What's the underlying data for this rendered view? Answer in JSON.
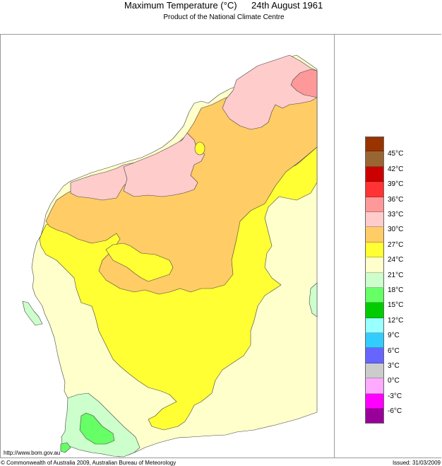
{
  "header": {
    "title": "Maximum Temperature (°C)",
    "date": "24th August 1961",
    "subtitle": "Product of the National Climate Centre"
  },
  "footer": {
    "url": "http://www.bom.gov.au",
    "copyright": "© Commonwealth of Australia 2009, Australian Bureau of Meteorology",
    "issued": "Issued: 31/03/2009"
  },
  "legend": {
    "units": "°C",
    "swatches": [
      {
        "color": "#993300",
        "range": ">45"
      },
      {
        "color": "#996633",
        "range": "42-45"
      },
      {
        "color": "#cc0000",
        "range": "39-42"
      },
      {
        "color": "#ff3333",
        "range": "36-39"
      },
      {
        "color": "#ff9999",
        "range": "33-36"
      },
      {
        "color": "#ffcccc",
        "range": "30-33"
      },
      {
        "color": "#ffcc66",
        "range": "27-30"
      },
      {
        "color": "#ffff33",
        "range": "24-27"
      },
      {
        "color": "#ffffcc",
        "range": "21-24"
      },
      {
        "color": "#ccffcc",
        "range": "18-21"
      },
      {
        "color": "#66ff66",
        "range": "15-18"
      },
      {
        "color": "#00cc00",
        "range": "12-15"
      },
      {
        "color": "#99ffff",
        "range": "9-12"
      },
      {
        "color": "#33ccff",
        "range": "6-9"
      },
      {
        "color": "#6666ff",
        "range": "3-6"
      },
      {
        "color": "#cccccc",
        "range": "0-3"
      },
      {
        "color": "#ffaaff",
        "range": "-3-0"
      },
      {
        "color": "#ff00ff",
        "range": "-6--3"
      },
      {
        "color": "#990099",
        "range": "<-6"
      }
    ],
    "labels": [
      "45°C",
      "42°C",
      "39°C",
      "36°C",
      "33°C",
      "30°C",
      "27°C",
      "24°C",
      "21°C",
      "18°C",
      "15°C",
      "12°C",
      "9°C",
      "6°C",
      "3°C",
      "0°C",
      "-3°C",
      "-6°C"
    ]
  },
  "map": {
    "region": "Western Australia",
    "zones": [
      {
        "name": "north-coast-pink",
        "range": "30-33",
        "color": "#ffcccc"
      },
      {
        "name": "kimberley-hot-spot",
        "range": "33-36",
        "color": "#ff9999"
      },
      {
        "name": "pilbara-interior",
        "range": "27-30",
        "color": "#ffcc66"
      },
      {
        "name": "central-interior",
        "range": "24-27",
        "color": "#ffff33"
      },
      {
        "name": "south-and-east-coast",
        "range": "21-24",
        "color": "#ffffcc"
      },
      {
        "name": "south-west-cool",
        "range": "18-21",
        "color": "#ccffcc"
      },
      {
        "name": "south-west-coldest",
        "range": "15-18",
        "color": "#66ff66"
      }
    ]
  }
}
